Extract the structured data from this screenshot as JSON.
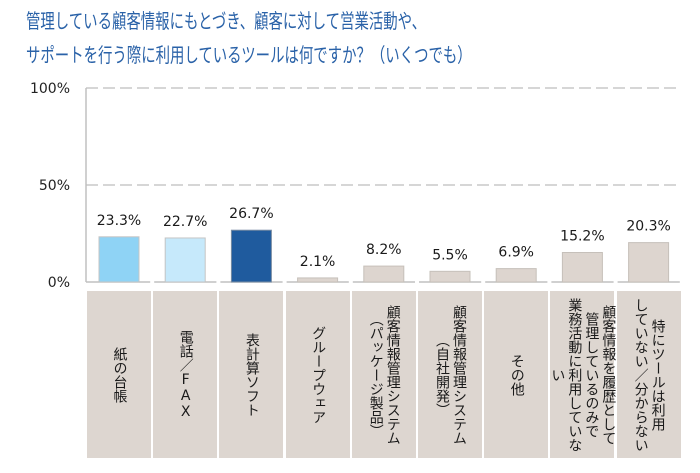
{
  "title": {
    "line1": "管理している顧客情報にもとづき、顧客に対して営業活動や、",
    "line2": "サポートを行う際に利用しているツールは何ですか？（いくつでも）",
    "color": "#2a62a8"
  },
  "chart_data": {
    "type": "bar",
    "title": "管理している顧客情報にもとづき、顧客に対して営業活動や、サポートを行う際に利用しているツールは何ですか？（いくつでも）",
    "xlabel": "",
    "ylabel": "",
    "ylim": [
      0,
      100
    ],
    "yticks": [
      0,
      50,
      100
    ],
    "yticklabels": [
      "0%",
      "50%",
      "100%"
    ],
    "grid": "dashed at 50% and 100%",
    "categories": [
      "紙の台帳",
      "電話／FAX",
      "表計算ソフト",
      "グループウェア",
      "顧客情報管理システム\n（パッケージ製品）",
      "顧客情報管理システム\n（自社開発）",
      "その他",
      "顧客情報を履歴として\n管理しているのみで\n業務活動に利用していない",
      "特にツールは利用\nしていない／分からない"
    ],
    "values": [
      23.3,
      22.7,
      26.7,
      2.1,
      8.2,
      5.5,
      6.9,
      15.2,
      20.3
    ],
    "value_suffix": "%",
    "bar_colors": [
      "#8fd3f5",
      "#c6e9fb",
      "#1f5b9e",
      "#ddd5cf",
      "#ddd5cf",
      "#ddd5cf",
      "#ddd5cf",
      "#ddd5cf",
      "#ddd5cf"
    ],
    "bar_border_colors": [
      "#c4c4c4",
      "#c4c4c4",
      "#7a8da3",
      "#c6c0ba",
      "#c6c0ba",
      "#c6c0ba",
      "#c6c0ba",
      "#c6c0ba",
      "#c6c0ba"
    ],
    "category_box_color": "#ddd6d0",
    "grid_color": "#bdbdbd",
    "axis_color": "#c0c0c0"
  }
}
